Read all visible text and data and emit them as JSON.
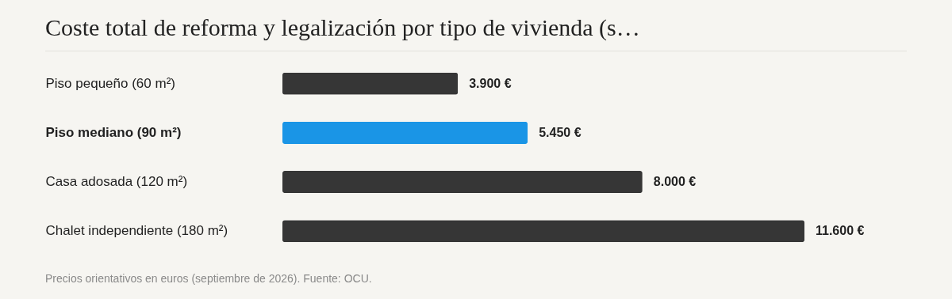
{
  "chart_data": {
    "type": "bar",
    "orientation": "horizontal",
    "title": "Coste total de reforma y legalización por tipo de vivienda (s…",
    "categories": [
      "Piso pequeño (60 m²)",
      "Piso mediano (90 m²)",
      "Casa adosada (120 m²)",
      "Chalet independiente (180 m²)"
    ],
    "values": [
      3900,
      5450,
      8000,
      11600
    ],
    "colors": [
      "#363636",
      "#1a95e6",
      "#363636",
      "#363636"
    ],
    "value_labels": [
      "3.900 €",
      "5.450 €",
      "8.000 €",
      "11.600 €"
    ],
    "annotations": [
      "Precios orientativos en euros (septiembre de 2026). Fuente: OCU."
    ]
  }
}
